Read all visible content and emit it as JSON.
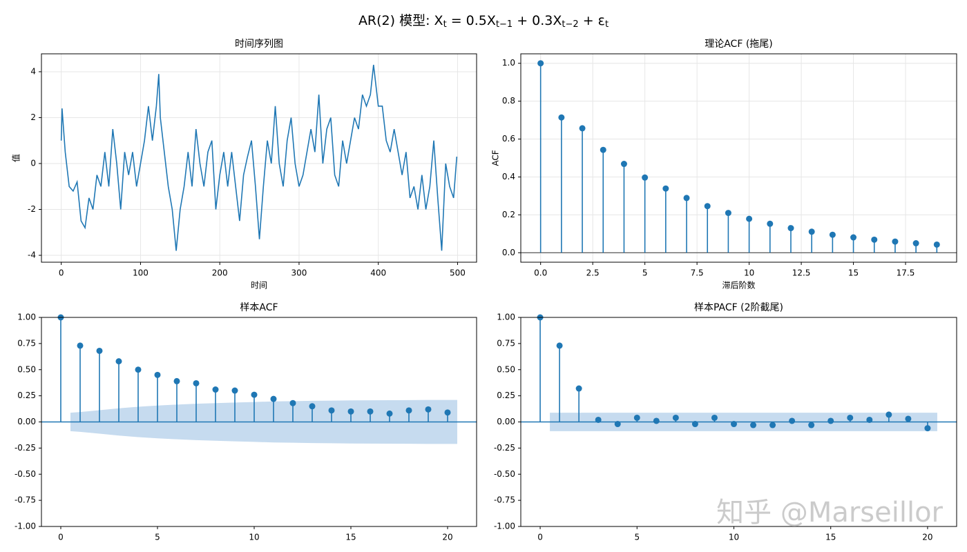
{
  "suptitle_parts": [
    "AR(2) 模型: X",
    "t",
    " = 0.5X",
    "t−1",
    " + 0.3X",
    "t−2",
    " + ε",
    "t"
  ],
  "watermark": "知乎 @Marseillor",
  "chart_data": [
    {
      "type": "line",
      "title": "时间序列图",
      "x_label": "时间",
      "y_label": "值",
      "color": "#1f77b4",
      "grid": true,
      "xlim": [
        -25,
        524
      ],
      "ylim": [
        -4.3,
        4.78
      ],
      "xticks": [
        0,
        100,
        200,
        300,
        400,
        500
      ],
      "yticks": [
        -4,
        -2,
        0,
        2,
        4
      ],
      "x": [
        0,
        1,
        5,
        10,
        15,
        20,
        25,
        30,
        35,
        40,
        45,
        50,
        55,
        60,
        65,
        70,
        75,
        80,
        85,
        90,
        95,
        100,
        105,
        110,
        115,
        120,
        123,
        125,
        130,
        135,
        140,
        145,
        150,
        155,
        160,
        165,
        170,
        175,
        180,
        185,
        190,
        195,
        200,
        205,
        210,
        215,
        220,
        225,
        230,
        235,
        240,
        245,
        250,
        255,
        260,
        265,
        270,
        275,
        280,
        285,
        290,
        295,
        300,
        305,
        310,
        315,
        320,
        325,
        330,
        335,
        340,
        345,
        350,
        355,
        360,
        365,
        370,
        375,
        380,
        385,
        390,
        394,
        400,
        405,
        410,
        415,
        420,
        425,
        430,
        435,
        440,
        445,
        450,
        455,
        460,
        465,
        470,
        475,
        480,
        485,
        490,
        495,
        499
      ],
      "values": [
        1,
        2.4,
        0.5,
        -1,
        -1.2,
        -0.8,
        -2.5,
        -2.8,
        -1.5,
        -2,
        -0.5,
        -1,
        0.5,
        -1,
        1.5,
        0,
        -2,
        0.5,
        -0.5,
        0.5,
        -1,
        0,
        1,
        2.5,
        1,
        2.5,
        3.9,
        2,
        0.5,
        -1,
        -2,
        -3.8,
        -2,
        -1,
        0.5,
        -1,
        1.5,
        0,
        -1,
        0.5,
        1,
        -2,
        -0.5,
        0.5,
        -1,
        0.5,
        -1,
        -2.5,
        -0.5,
        0.3,
        1,
        -1,
        -3.3,
        -1,
        1,
        0,
        2.5,
        0,
        -1,
        1,
        2,
        0,
        -1,
        -0.5,
        0.5,
        1.5,
        0.5,
        3,
        0,
        1.5,
        2,
        -0.5,
        -1,
        1,
        0,
        1,
        2,
        1.5,
        3,
        2.5,
        3,
        4.3,
        2.5,
        2.5,
        1,
        0.5,
        1.5,
        0.5,
        -0.5,
        0.5,
        -1.5,
        -1,
        -2,
        -0.5,
        -2,
        -1,
        1,
        -1.5,
        -3.8,
        0,
        -1,
        -1.5,
        0.3
      ]
    },
    {
      "type": "stem",
      "title": "理论ACF (拖尾)",
      "x_label": "滞后阶数",
      "y_label": "ACF",
      "color": "#1f77b4",
      "grid": true,
      "xlim": [
        -0.95,
        19.95
      ],
      "ylim": [
        -0.05,
        1.05
      ],
      "xticks": [
        {
          "value": 0,
          "label": "0.0"
        },
        2.5,
        5,
        7.5,
        10,
        12.5,
        15,
        17.5
      ],
      "yticks": [
        {
          "value": 0,
          "label": "0.0"
        },
        0.2,
        0.4,
        0.6,
        0.8,
        {
          "value": 1,
          "label": "1.0"
        }
      ],
      "x": [
        0,
        1,
        2,
        3,
        4,
        5,
        6,
        7,
        8,
        9,
        10,
        11,
        12,
        13,
        14,
        15,
        16,
        17,
        18,
        19
      ],
      "values": [
        1,
        0.714,
        0.657,
        0.543,
        0.469,
        0.397,
        0.339,
        0.289,
        0.246,
        0.21,
        0.179,
        0.153,
        0.13,
        0.111,
        0.095,
        0.081,
        0.069,
        0.059,
        0.05,
        0.043
      ]
    },
    {
      "type": "stem",
      "title": "样本ACF",
      "color": "#1f77b4",
      "grid": false,
      "xlim": [
        -1,
        21.5
      ],
      "ylim": [
        -1,
        1
      ],
      "xticks": [
        0,
        5,
        10,
        15,
        20
      ],
      "yticks": [
        {
          "value": -1,
          "label": "-1.00"
        },
        {
          "value": -0.75,
          "label": "-0.75"
        },
        {
          "value": -0.5,
          "label": "-0.50"
        },
        {
          "value": -0.25,
          "label": "-0.25"
        },
        {
          "value": 0,
          "label": "0.00"
        },
        0.25,
        {
          "value": 0.5,
          "label": "0.50"
        },
        0.75,
        {
          "value": 1,
          "label": "1.00"
        }
      ],
      "x": [
        0,
        1,
        2,
        3,
        4,
        5,
        6,
        7,
        8,
        9,
        10,
        11,
        12,
        13,
        14,
        15,
        16,
        17,
        18,
        19,
        20
      ],
      "values": [
        1,
        0.73,
        0.68,
        0.58,
        0.5,
        0.45,
        0.39,
        0.37,
        0.31,
        0.3,
        0.26,
        0.22,
        0.18,
        0.15,
        0.11,
        0.1,
        0.1,
        0.08,
        0.11,
        0.12,
        0.09
      ],
      "band": {
        "color": "#c6dbef",
        "x": [
          0.5,
          1,
          2,
          3,
          4,
          5,
          6,
          7,
          8,
          9,
          10,
          11,
          12,
          13,
          14,
          15,
          16,
          17,
          18,
          19,
          20,
          20.5
        ],
        "upper": [
          0.088,
          0.095,
          0.112,
          0.13,
          0.145,
          0.157,
          0.166,
          0.174,
          0.18,
          0.186,
          0.191,
          0.196,
          0.199,
          0.202,
          0.204,
          0.206,
          0.207,
          0.208,
          0.209,
          0.21,
          0.21,
          0.21
        ],
        "lower": [
          -0.088,
          -0.095,
          -0.112,
          -0.13,
          -0.145,
          -0.157,
          -0.166,
          -0.174,
          -0.18,
          -0.186,
          -0.191,
          -0.196,
          -0.199,
          -0.202,
          -0.204,
          -0.206,
          -0.207,
          -0.208,
          -0.209,
          -0.21,
          -0.21,
          -0.21
        ]
      }
    },
    {
      "type": "stem",
      "title": "样本PACF (2阶截尾)",
      "color": "#1f77b4",
      "grid": false,
      "xlim": [
        -1,
        21.5
      ],
      "ylim": [
        -1,
        1
      ],
      "xticks": [
        0,
        5,
        10,
        15,
        20
      ],
      "yticks": [
        {
          "value": -1,
          "label": "-1.00"
        },
        {
          "value": -0.75,
          "label": "-0.75"
        },
        {
          "value": -0.5,
          "label": "-0.50"
        },
        {
          "value": -0.25,
          "label": "-0.25"
        },
        {
          "value": 0,
          "label": "0.00"
        },
        0.25,
        {
          "value": 0.5,
          "label": "0.50"
        },
        0.75,
        {
          "value": 1,
          "label": "1.00"
        }
      ],
      "x": [
        0,
        1,
        2,
        3,
        4,
        5,
        6,
        7,
        8,
        9,
        10,
        11,
        12,
        13,
        14,
        15,
        16,
        17,
        18,
        19,
        20
      ],
      "values": [
        1,
        0.73,
        0.32,
        0.02,
        -0.02,
        0.04,
        0.01,
        0.04,
        -0.02,
        0.04,
        -0.02,
        -0.03,
        -0.03,
        0.01,
        -0.03,
        0.01,
        0.04,
        0.02,
        0.07,
        0.03,
        -0.06
      ],
      "band": {
        "color": "#c6dbef",
        "x": [
          0.5,
          20.5
        ],
        "upper": [
          0.088,
          0.088
        ],
        "lower": [
          -0.088,
          -0.088
        ]
      }
    }
  ]
}
